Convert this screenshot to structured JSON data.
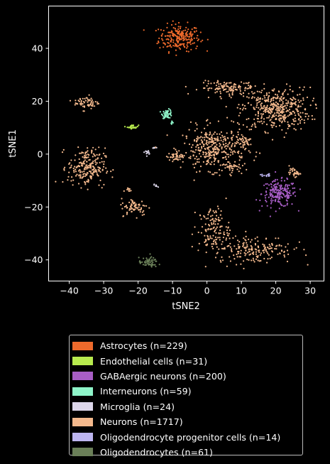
{
  "chart_data": {
    "type": "scatter",
    "xlabel": "tSNE2",
    "ylabel": "tSNE1",
    "xlim": [
      -46,
      34
    ],
    "ylim": [
      -48,
      56
    ],
    "xticks": [
      -40,
      -30,
      -20,
      -10,
      0,
      10,
      20,
      30
    ],
    "yticks": [
      -40,
      -20,
      0,
      20,
      40
    ],
    "legend_position": "below",
    "grid": false,
    "series": [
      {
        "name": "Astrocytes (n=229)",
        "color": "#ee6a2c",
        "clusters": [
          {
            "cx": -8,
            "cy": 44,
            "sx": 3.3,
            "sy": 2.8,
            "n": 229
          }
        ]
      },
      {
        "name": "Endothelial cells (n=31)",
        "color": "#b7ea4e",
        "clusters": [
          {
            "cx": -21.5,
            "cy": 10.3,
            "sx": 0.9,
            "sy": 0.4,
            "n": 31
          }
        ]
      },
      {
        "name": "GABAergic neurons (n=200)",
        "color": "#a85ec6",
        "clusters": [
          {
            "cx": 21,
            "cy": -15,
            "sx": 2.8,
            "sy": 2.8,
            "n": 200
          }
        ]
      },
      {
        "name": "Interneurons (n=59)",
        "color": "#8ff5ca",
        "clusters": [
          {
            "cx": -11.5,
            "cy": 15.2,
            "sx": 0.8,
            "sy": 0.9,
            "n": 50
          },
          {
            "cx": -10.3,
            "cy": 12,
            "sx": 0.4,
            "sy": 0.3,
            "n": 9
          }
        ]
      },
      {
        "name": "Microglia (n=24)",
        "color": "#dcd6ea",
        "clusters": [
          {
            "cx": -17.2,
            "cy": 0.7,
            "sx": 0.5,
            "sy": 0.4,
            "n": 12
          },
          {
            "cx": -15,
            "cy": -12,
            "sx": 0.4,
            "sy": 0.3,
            "n": 6
          },
          {
            "cx": -15.5,
            "cy": 2.2,
            "sx": 0.3,
            "sy": 0.3,
            "n": 6
          }
        ]
      },
      {
        "name": "Neurons (n=1717)",
        "color": "#f4b98d",
        "clusters": [
          {
            "cx": 20,
            "cy": 17,
            "sx": 5.5,
            "sy": 4.5,
            "n": 420
          },
          {
            "cx": 6,
            "cy": 25,
            "sx": 4.5,
            "sy": 1.4,
            "n": 110
          },
          {
            "cx": 2,
            "cy": 2,
            "sx": 5,
            "sy": 4.5,
            "n": 360
          },
          {
            "cx": -35,
            "cy": -5,
            "sx": 3,
            "sy": 4,
            "n": 220
          },
          {
            "cx": -35,
            "cy": 19.5,
            "sx": 2,
            "sy": 1.5,
            "n": 60
          },
          {
            "cx": -21,
            "cy": -20,
            "sx": 2.2,
            "sy": 1.8,
            "n": 70
          },
          {
            "cx": 14,
            "cy": -36,
            "sx": 6,
            "sy": 3,
            "n": 180
          },
          {
            "cx": 2,
            "cy": -29,
            "sx": 2.5,
            "sy": 5,
            "n": 140
          },
          {
            "cx": 25.5,
            "cy": -7,
            "sx": 0.9,
            "sy": 0.8,
            "n": 35
          },
          {
            "cx": -9,
            "cy": -1,
            "sx": 1.5,
            "sy": 1,
            "n": 40
          },
          {
            "cx": 7,
            "cy": -5,
            "sx": 1.5,
            "sy": 1,
            "n": 30
          },
          {
            "cx": -23,
            "cy": -13.5,
            "sx": 0.6,
            "sy": 0.6,
            "n": 10
          },
          {
            "cx": 11,
            "cy": 5,
            "sx": 1.5,
            "sy": 1.2,
            "n": 32
          },
          {
            "cx": 12,
            "cy": 26,
            "sx": 1.3,
            "sy": 1,
            "n": 10
          }
        ]
      },
      {
        "name": "Oligodendrocyte progenitor cells (n=14)",
        "color": "#bdb5f0",
        "clusters": [
          {
            "cx": 17,
            "cy": -8,
            "sx": 1.5,
            "sy": 0.5,
            "n": 14
          }
        ]
      },
      {
        "name": "Oligodendrocytes (n=61)",
        "color": "#6a7f58",
        "clusters": [
          {
            "cx": -17,
            "cy": -41,
            "sx": 1.5,
            "sy": 1,
            "n": 61
          }
        ]
      }
    ]
  }
}
